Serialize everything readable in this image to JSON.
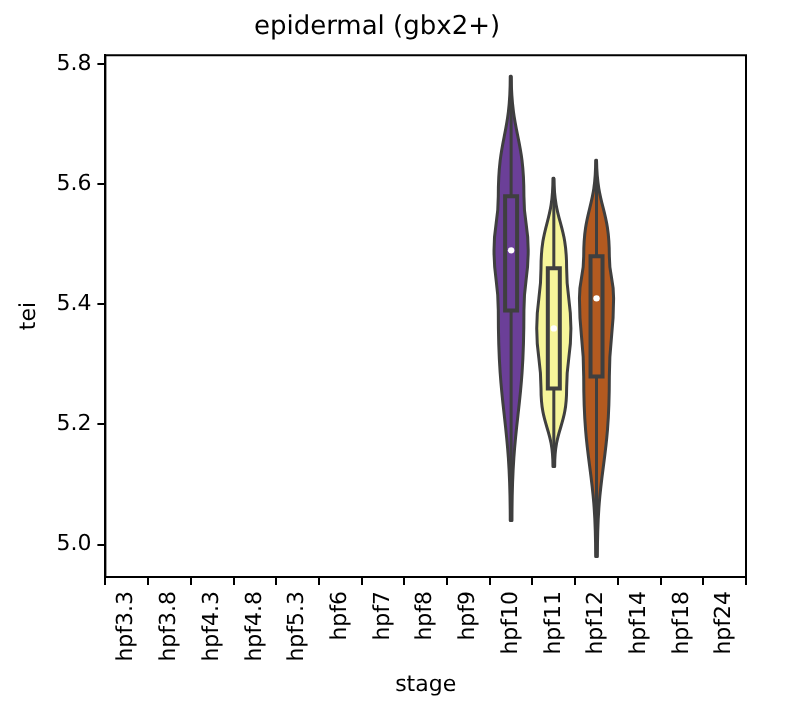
{
  "chart_data": {
    "type": "box",
    "title": "epidermal (gbx2+)",
    "xlabel": "stage",
    "ylabel": "tei",
    "categories": [
      "hpf3.3",
      "hpf3.8",
      "hpf4.3",
      "hpf4.8",
      "hpf5.3",
      "hpf6",
      "hpf7",
      "hpf8",
      "hpf9",
      "hpf10",
      "hpf11",
      "hpf12",
      "hpf14",
      "hpf18",
      "hpf24"
    ],
    "boxes": [
      null,
      null,
      null,
      null,
      null,
      null,
      null,
      null,
      null,
      {
        "low": 5.04,
        "q1": 5.39,
        "median": 5.49,
        "q3": 5.58,
        "high": 5.78
      },
      {
        "low": 5.13,
        "q1": 5.26,
        "median": 5.36,
        "q3": 5.46,
        "high": 5.61
      },
      {
        "low": 4.98,
        "q1": 5.28,
        "median": 5.41,
        "q3": 5.48,
        "high": 5.64
      },
      null,
      null,
      null
    ],
    "colors": [
      null,
      null,
      null,
      null,
      null,
      null,
      null,
      null,
      null,
      "#6b3f98",
      "#f6f59a",
      "#b35a20",
      null,
      null,
      null
    ],
    "ylim": [
      4.946,
      5.815
    ],
    "yticks": [
      {
        "value": 5.0,
        "label": "5.0"
      },
      {
        "value": 5.2,
        "label": "5.2"
      },
      {
        "value": 5.4,
        "label": "5.4"
      },
      {
        "value": 5.6,
        "label": "5.6"
      },
      {
        "value": 5.8,
        "label": "5.8"
      }
    ],
    "grid": false,
    "legend": false
  }
}
